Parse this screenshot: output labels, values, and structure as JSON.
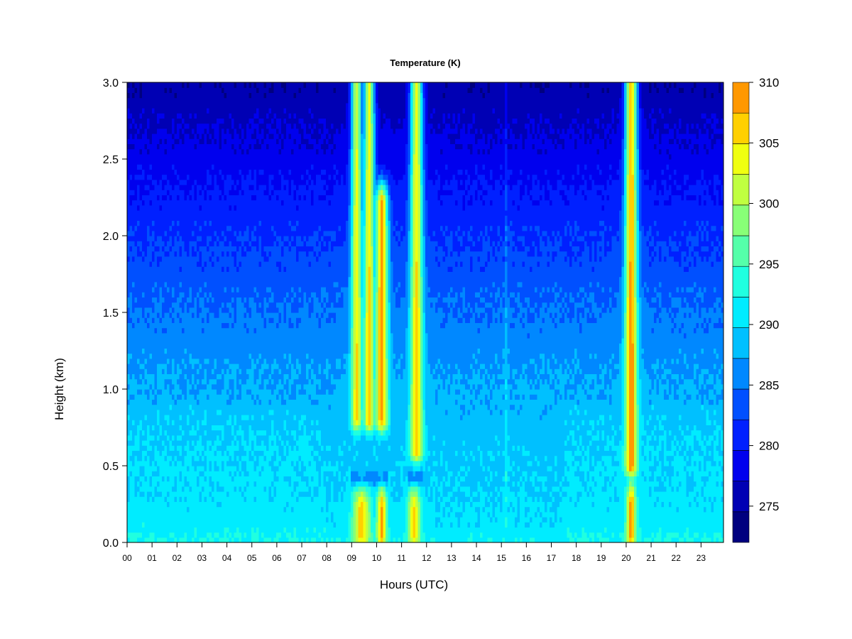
{
  "chart_data": {
    "type": "heatmap",
    "title": "Temperature (K)",
    "xlabel": "Hours (UTC)",
    "ylabel": "Height (km)",
    "xlim": [
      0,
      23.9
    ],
    "ylim": [
      0,
      3.0
    ],
    "x_ticks": [
      "00",
      "01",
      "02",
      "03",
      "04",
      "05",
      "06",
      "07",
      "08",
      "09",
      "10",
      "11",
      "12",
      "13",
      "14",
      "15",
      "16",
      "17",
      "18",
      "19",
      "20",
      "21",
      "22",
      "23"
    ],
    "y_ticks": [
      "0.0",
      "0.5",
      "1.0",
      "1.5",
      "2.0",
      "2.5",
      "3.0"
    ],
    "colorbar": {
      "min": 272,
      "max": 310,
      "step": 2.5,
      "ticks": [
        "275",
        "280",
        "285",
        "290",
        "295",
        "300",
        "305",
        "310"
      ],
      "colors": [
        "#00007f",
        "#0000b4",
        "#0000ee",
        "#0020ff",
        "#0050ff",
        "#0088ff",
        "#00c0ff",
        "#00ecff",
        "#20ffe0",
        "#55ff aa",
        "#88ff77",
        "#c0ff40",
        "#f0ff10",
        "#ffd000",
        "#ff9800",
        "#ff6000",
        "#ff2a00",
        "#ee0000",
        "#b40000",
        "#7f0000"
      ]
    },
    "background_profile": {
      "description_units": "height km -> temperature K (quiet periods)",
      "height_km": [
        0.0,
        0.1,
        0.3,
        0.6,
        1.0,
        1.4,
        1.8,
        2.2,
        2.6,
        3.0
      ],
      "temperature_K": [
        292,
        290.5,
        289.5,
        289,
        287.5,
        285.5,
        283,
        280.5,
        277.5,
        275
      ]
    },
    "warm_features": [
      {
        "center_hour": 9.2,
        "half_width_h": 0.22,
        "bottom_km": 0.8,
        "top_km": 3.0,
        "peak_K": 305
      },
      {
        "center_hour": 9.7,
        "half_width_h": 0.22,
        "bottom_km": 0.8,
        "top_km": 3.0,
        "peak_K": 306
      },
      {
        "center_hour": 10.2,
        "half_width_h": 0.25,
        "bottom_km": 0.8,
        "top_km": 2.2,
        "peak_K": 308
      },
      {
        "center_hour": 11.6,
        "half_width_h": 0.25,
        "bottom_km": 0.6,
        "top_km": 3.0,
        "peak_K": 306
      },
      {
        "center_hour": 20.2,
        "half_width_h": 0.25,
        "bottom_km": 0.5,
        "top_km": 3.0,
        "peak_K": 309
      },
      {
        "center_hour": 9.4,
        "half_width_h": 0.35,
        "bottom_km": 0.05,
        "top_km": 0.22,
        "peak_K": 306
      },
      {
        "center_hour": 10.2,
        "half_width_h": 0.2,
        "bottom_km": 0.05,
        "top_km": 0.22,
        "peak_K": 308
      },
      {
        "center_hour": 11.5,
        "half_width_h": 0.25,
        "bottom_km": 0.05,
        "top_km": 0.22,
        "peak_K": 305
      },
      {
        "center_hour": 20.2,
        "half_width_h": 0.2,
        "bottom_km": 0.05,
        "top_km": 0.25,
        "peak_K": 308
      }
    ]
  }
}
